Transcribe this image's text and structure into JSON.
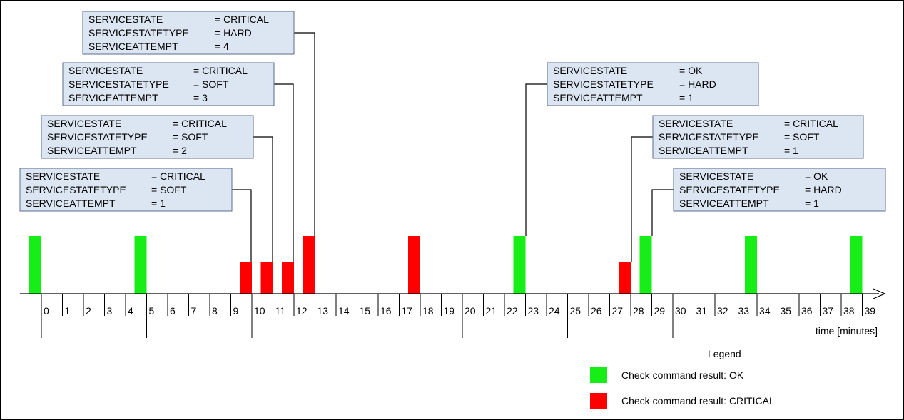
{
  "colors": {
    "ok": "#17ee17",
    "critical": "#ff0000",
    "box_fill": "#dce6f2"
  },
  "axis": {
    "min": 0,
    "max": 39,
    "label": "time [minutes]",
    "major_every": 5
  },
  "checks": [
    {
      "time": 0,
      "result": "ok",
      "height": "full"
    },
    {
      "time": 5,
      "result": "ok",
      "height": "full"
    },
    {
      "time": 10,
      "result": "critical",
      "height": "half"
    },
    {
      "time": 11,
      "result": "critical",
      "height": "half"
    },
    {
      "time": 12,
      "result": "critical",
      "height": "half"
    },
    {
      "time": 13,
      "result": "critical",
      "height": "full"
    },
    {
      "time": 18,
      "result": "critical",
      "height": "full"
    },
    {
      "time": 23,
      "result": "ok",
      "height": "full"
    },
    {
      "time": 28,
      "result": "critical",
      "height": "half"
    },
    {
      "time": 29,
      "result": "ok",
      "height": "full"
    },
    {
      "time": 34,
      "result": "ok",
      "height": "full"
    },
    {
      "time": 39,
      "result": "ok",
      "height": "full"
    }
  ],
  "state_boxes": [
    {
      "check_time": 10,
      "rows": [
        [
          "SERVICESTATE",
          "= CRITICAL"
        ],
        [
          "SERVICESTATETYPE",
          "= SOFT"
        ],
        [
          "SERVICEATTEMPT",
          "= 1"
        ]
      ]
    },
    {
      "check_time": 11,
      "rows": [
        [
          "SERVICESTATE",
          "= CRITICAL"
        ],
        [
          "SERVICESTATETYPE",
          "= SOFT"
        ],
        [
          "SERVICEATTEMPT",
          "= 2"
        ]
      ]
    },
    {
      "check_time": 12,
      "rows": [
        [
          "SERVICESTATE",
          "= CRITICAL"
        ],
        [
          "SERVICESTATETYPE",
          "= SOFT"
        ],
        [
          "SERVICEATTEMPT",
          "= 3"
        ]
      ]
    },
    {
      "check_time": 13,
      "rows": [
        [
          "SERVICESTATE",
          "= CRITICAL"
        ],
        [
          "SERVICESTATETYPE",
          "= HARD"
        ],
        [
          "SERVICEATTEMPT",
          "= 4"
        ]
      ]
    },
    {
      "check_time": 23,
      "rows": [
        [
          "SERVICESTATE",
          "= OK"
        ],
        [
          "SERVICESTATETYPE",
          "= HARD"
        ],
        [
          "SERVICEATTEMPT",
          "= 1"
        ]
      ]
    },
    {
      "check_time": 28,
      "rows": [
        [
          "SERVICESTATE",
          "= CRITICAL"
        ],
        [
          "SERVICESTATETYPE",
          "= SOFT"
        ],
        [
          "SERVICEATTEMPT",
          "= 1"
        ]
      ]
    },
    {
      "check_time": 29,
      "rows": [
        [
          "SERVICESTATE",
          "= OK"
        ],
        [
          "SERVICESTATETYPE",
          "= HARD"
        ],
        [
          "SERVICEATTEMPT",
          "= 1"
        ]
      ]
    }
  ],
  "legend": {
    "title": "Legend",
    "items": [
      {
        "result": "ok",
        "label": "Check command result: OK"
      },
      {
        "result": "critical",
        "label": "Check command result: CRITICAL"
      }
    ]
  }
}
